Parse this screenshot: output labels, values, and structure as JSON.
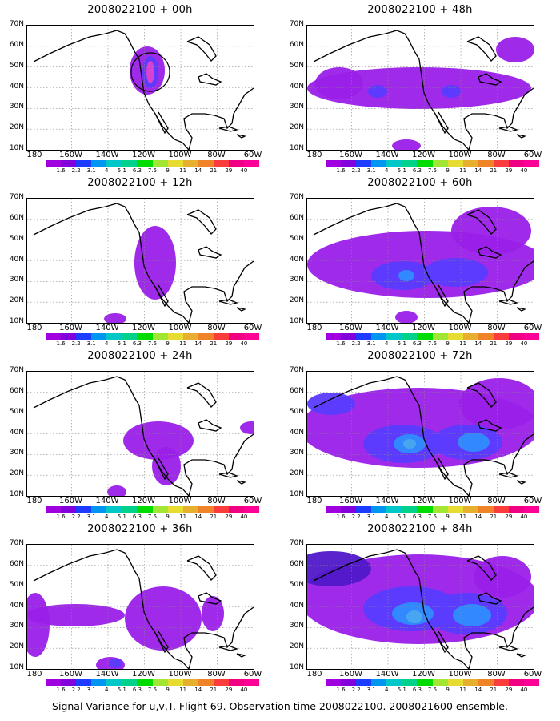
{
  "panels": [
    {
      "title": "2008022100 + 00h",
      "level": 1,
      "circle": true
    },
    {
      "title": "2008022100 + 12h",
      "level": 2,
      "circle": false
    },
    {
      "title": "2008022100 + 24h",
      "level": 3,
      "circle": false
    },
    {
      "title": "2008022100 + 36h",
      "level": 4,
      "circle": false
    },
    {
      "title": "2008022100 + 48h",
      "level": 5,
      "circle": false
    },
    {
      "title": "2008022100 + 60h",
      "level": 6,
      "circle": false
    },
    {
      "title": "2008022100 + 72h",
      "level": 7,
      "circle": false
    },
    {
      "title": "2008022100 + 84h",
      "level": 8,
      "circle": false
    }
  ],
  "lat_labels": [
    "70N",
    "60N",
    "50N",
    "40N",
    "30N",
    "20N",
    "10N"
  ],
  "lon_labels": [
    "180",
    "160W",
    "140W",
    "120W",
    "100W",
    "80W",
    "60W"
  ],
  "colorbar": {
    "labels": [
      "1.6",
      "2.2",
      "3.1",
      "4",
      "5.1",
      "6.3",
      "7.5",
      "9",
      "11",
      "14",
      "21",
      "29",
      "40"
    ],
    "colors": [
      "#a000e0",
      "#8200dc",
      "#1e3cff",
      "#0096f0",
      "#00c8c8",
      "#00d28c",
      "#00dc00",
      "#a0e632",
      "#e6dc32",
      "#e6af2d",
      "#f08228",
      "#fa3c3c",
      "#f00082",
      "#ff0096"
    ]
  },
  "caption": "Signal Variance for u,v,T. Flight 69. Observation time 2008022100. 2008021600 ensemble."
}
